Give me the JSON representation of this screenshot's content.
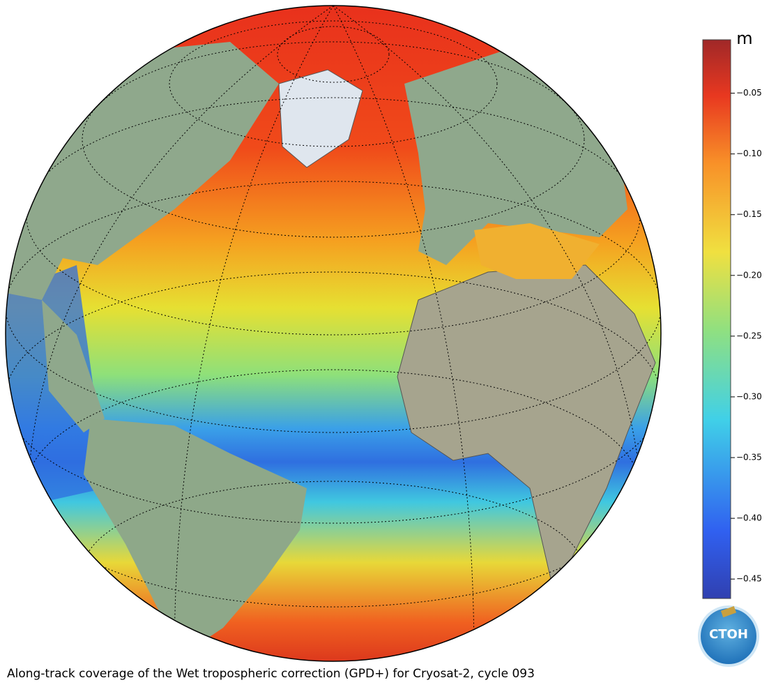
{
  "caption": "Along-track coverage of the Wet tropospheric correction (GPD+) for Cryosat-2, cycle 093",
  "colorbar": {
    "unit": "m",
    "lim": [
      -0.466,
      -0.006
    ],
    "ticks": [
      {
        "value": -0.05,
        "label": "−0.05"
      },
      {
        "value": -0.1,
        "label": "−0.10"
      },
      {
        "value": -0.15,
        "label": "−0.15"
      },
      {
        "value": -0.2,
        "label": "−0.20"
      },
      {
        "value": -0.25,
        "label": "−0.25"
      },
      {
        "value": -0.3,
        "label": "−0.30"
      },
      {
        "value": -0.35,
        "label": "−0.35"
      },
      {
        "value": -0.4,
        "label": "−0.40"
      },
      {
        "value": -0.45,
        "label": "−0.45"
      }
    ]
  },
  "logo": "CTOH"
}
